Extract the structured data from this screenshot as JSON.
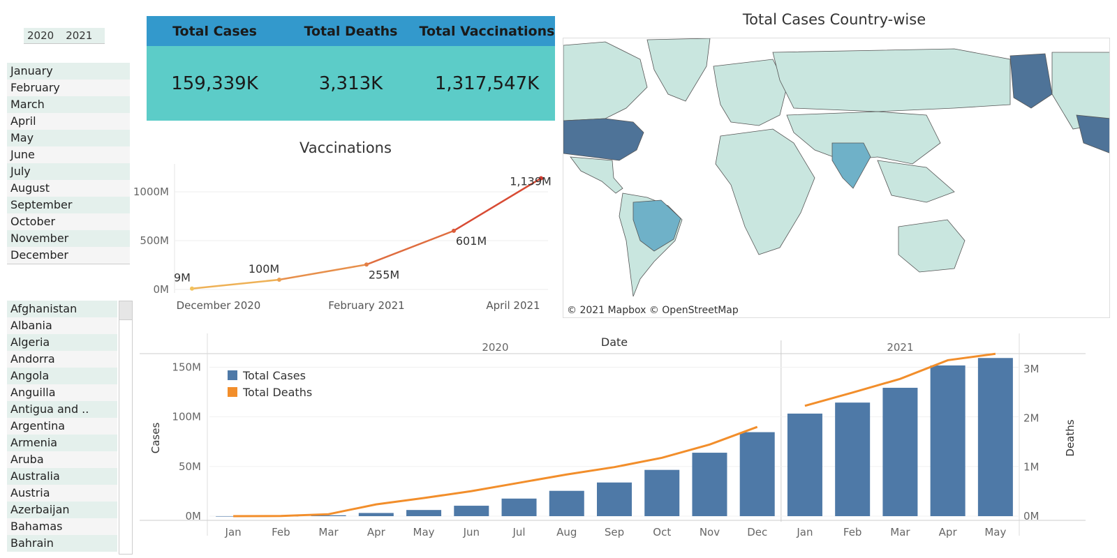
{
  "filters": {
    "years": [
      "2020",
      "2021"
    ],
    "months": [
      "January",
      "February",
      "March",
      "April",
      "May",
      "June",
      "July",
      "August",
      "September",
      "October",
      "November",
      "December"
    ],
    "countries": [
      "Afghanistan",
      "Albania",
      "Algeria",
      "Andorra",
      "Angola",
      "Anguilla",
      "Antigua and ..",
      "Argentina",
      "Armenia",
      "Aruba",
      "Australia",
      "Austria",
      "Azerbaijan",
      "Bahamas",
      "Bahrain"
    ]
  },
  "kpis": {
    "labels": [
      "Total Cases",
      "Total Deaths",
      "Total Vaccinations"
    ],
    "values": [
      "159,339K",
      "3,313K",
      "1,317,547K"
    ],
    "header_color": "#3399cc",
    "body_color": "#5cccc8"
  },
  "map": {
    "title": "Total Cases Country-wise",
    "credit": "© 2021 Mapbox © OpenStreetMap",
    "colors": {
      "low": "#c9e6df",
      "mid": "#6fb1c8",
      "high": "#4e7398"
    }
  },
  "chart_data": [
    {
      "type": "line",
      "title": "Vaccinations",
      "xlabel": "",
      "ylabel": "",
      "x": [
        "December 2020",
        "January 2021",
        "February 2021",
        "March 2021",
        "April 2021"
      ],
      "x_tick_labels": [
        "December 2020",
        "February 2021",
        "April 2021"
      ],
      "values": [
        9,
        100,
        255,
        601,
        1139
      ],
      "value_labels": [
        "9M",
        "100M",
        "255M",
        "601M",
        "1,139M"
      ],
      "y_unit": "M",
      "ylim": [
        0,
        1250
      ],
      "y_ticks": [
        0,
        500,
        1000
      ],
      "y_tick_labels": [
        "0M",
        "500M",
        "1000M"
      ],
      "color_gradient": [
        "#f2c25c",
        "#d43a2e"
      ]
    },
    {
      "type": "bar",
      "title": "",
      "header": "Date",
      "years": [
        {
          "label": "2020",
          "months": 12
        },
        {
          "label": "2021",
          "months": 5
        }
      ],
      "categories": [
        "Jan",
        "Feb",
        "Mar",
        "Apr",
        "May",
        "Jun",
        "Jul",
        "Aug",
        "Sep",
        "Oct",
        "Nov",
        "Dec",
        "Jan",
        "Feb",
        "Mar",
        "Apr",
        "May"
      ],
      "series": [
        {
          "name": "Total Cases",
          "axis": "left",
          "color": "#4e79a7",
          "values": [
            0.01,
            0.1,
            0.9,
            3.2,
            6.2,
            10.5,
            17.7,
            25.5,
            33.9,
            46.6,
            63.9,
            84.6,
            103.3,
            114.4,
            129.3,
            151.8,
            159.3
          ]
        },
        {
          "name": "Total Deaths",
          "axis": "right",
          "color": "#f28e2b",
          "values": [
            0.0002,
            0.003,
            0.04,
            0.24,
            0.37,
            0.51,
            0.68,
            0.85,
            1.0,
            1.19,
            1.46,
            1.82,
            2.25,
            2.52,
            2.8,
            3.18,
            3.31
          ]
        }
      ],
      "left_axis": {
        "label": "Cases",
        "ylim": [
          0,
          163
        ],
        "ticks": [
          0,
          50,
          100,
          150
        ],
        "tick_labels": [
          "0M",
          "50M",
          "100M",
          "150M"
        ]
      },
      "right_axis": {
        "label": "Deaths",
        "ylim": [
          0,
          3.3
        ],
        "ticks": [
          0,
          1,
          2,
          3
        ],
        "tick_labels": [
          "0M",
          "1M",
          "2M",
          "3M"
        ]
      },
      "legend_position": "top-left"
    }
  ]
}
